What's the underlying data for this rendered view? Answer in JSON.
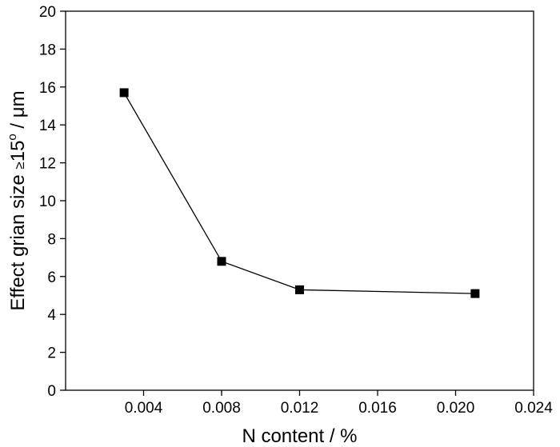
{
  "chart_data": {
    "type": "line",
    "xlabel": "N content / %",
    "ylabel": {
      "prefix": "Effect grian size ",
      "symbol": "≥",
      "num": "15",
      "superscript": "o",
      "suffix": " / μm"
    },
    "xlim": [
      0.0,
      0.024
    ],
    "ylim": [
      0,
      20
    ],
    "xticks": [
      0.004,
      0.008,
      0.012,
      0.016,
      0.02,
      0.024
    ],
    "xtick_labels": [
      "0.004",
      "0.008",
      "0.012",
      "0.016",
      "0.020",
      "0.024"
    ],
    "yticks": [
      0,
      2,
      4,
      6,
      8,
      10,
      12,
      14,
      16,
      18,
      20
    ],
    "ytick_labels": [
      "0",
      "2",
      "4",
      "6",
      "8",
      "10",
      "12",
      "14",
      "16",
      "18",
      "20"
    ],
    "grid": false,
    "legend": "none",
    "marker": "square",
    "series": [
      {
        "x": [
          0.003,
          0.008,
          0.012,
          0.021
        ],
        "y": [
          15.7,
          6.8,
          5.3,
          5.1
        ]
      }
    ]
  }
}
